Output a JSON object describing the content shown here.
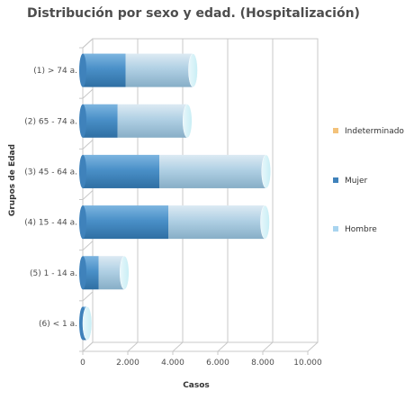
{
  "chart_data": {
    "type": "bar",
    "orientation": "horizontal",
    "stacked": true,
    "three_d": true,
    "title": "Distribución por sexo y edad. (Hospitalización)",
    "xlabel": "Casos",
    "ylabel": "Grupos de Edad",
    "categories": [
      "(1) > 74 a.",
      "(2) 65 - 74 a.",
      "(3) 45 - 64 a.",
      "(4) 15 - 44 a.",
      "(5) 1 - 14 a.",
      "(6) < 1 a."
    ],
    "series": [
      {
        "name": "Mujer",
        "values": [
          1900,
          1550,
          3400,
          3800,
          700,
          150
        ],
        "color": "#4a90c8"
      },
      {
        "name": "Hombre",
        "values": [
          3000,
          3100,
          4750,
          4300,
          1150,
          50
        ],
        "color": "#b0d0e4"
      },
      {
        "name": "Indeterminado",
        "values": [
          0,
          0,
          0,
          0,
          0,
          0
        ],
        "color": "#f3c27a"
      }
    ],
    "xlim": [
      0,
      10000
    ],
    "xticks": [
      0,
      2000,
      4000,
      6000,
      8000,
      10000
    ],
    "xtick_labels": [
      "0",
      "2.000",
      "4.000",
      "6.000",
      "8.000",
      "10.000"
    ],
    "legend_items": [
      "Indeterminado",
      "Mujer",
      "Hombre"
    ],
    "legend_position": "right",
    "grid": true
  }
}
